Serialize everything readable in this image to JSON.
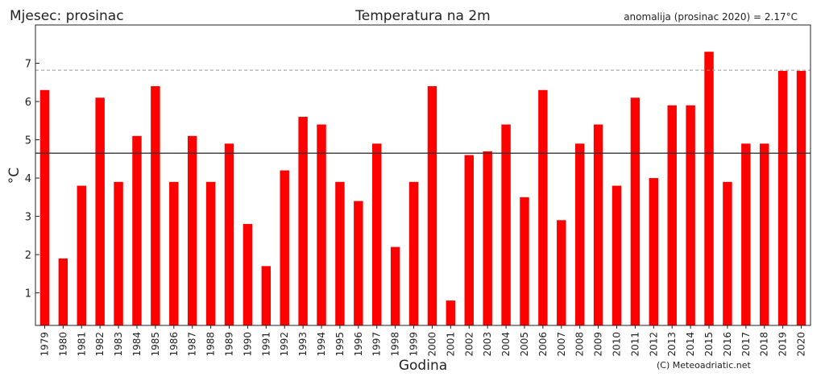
{
  "header": {
    "left_label": "Mjesec: prosinac",
    "title": "Temperatura na 2m",
    "anomaly_text": "anomalija (prosinac 2020) = 2.17°C"
  },
  "footer": {
    "credit": "(C) Meteoadriatic.net"
  },
  "chart_data": {
    "type": "bar",
    "title": "Temperatura na 2m",
    "xlabel": "Godina",
    "ylabel": "°C",
    "ylim": [
      0.15,
      8.0
    ],
    "yticks": [
      1,
      2,
      3,
      4,
      5,
      6,
      7
    ],
    "bar_color": "#ff0000",
    "reference_lines": [
      {
        "kind": "mean",
        "value": 4.65,
        "style": "solid",
        "color": "#333333"
      },
      {
        "kind": "dashed",
        "value": 6.82,
        "style": "dashed",
        "color": "#999999"
      }
    ],
    "categories": [
      "1979",
      "1980",
      "1981",
      "1982",
      "1983",
      "1984",
      "1985",
      "1986",
      "1987",
      "1988",
      "1989",
      "1990",
      "1991",
      "1992",
      "1993",
      "1994",
      "1995",
      "1996",
      "1997",
      "1998",
      "1999",
      "2000",
      "2001",
      "2002",
      "2003",
      "2004",
      "2005",
      "2006",
      "2007",
      "2008",
      "2009",
      "2010",
      "2011",
      "2012",
      "2013",
      "2014",
      "2015",
      "2016",
      "2017",
      "2018",
      "2019",
      "2020"
    ],
    "values": [
      6.3,
      1.9,
      3.8,
      6.1,
      3.9,
      5.1,
      6.4,
      3.9,
      5.1,
      3.9,
      4.9,
      2.8,
      1.7,
      4.2,
      5.6,
      5.4,
      3.9,
      3.4,
      4.9,
      2.2,
      3.9,
      6.4,
      0.8,
      4.6,
      4.7,
      5.4,
      3.5,
      6.3,
      2.9,
      4.9,
      5.4,
      3.8,
      6.1,
      4.0,
      5.9,
      5.9,
      7.3,
      3.9,
      4.9,
      4.9,
      6.8,
      6.8
    ]
  }
}
